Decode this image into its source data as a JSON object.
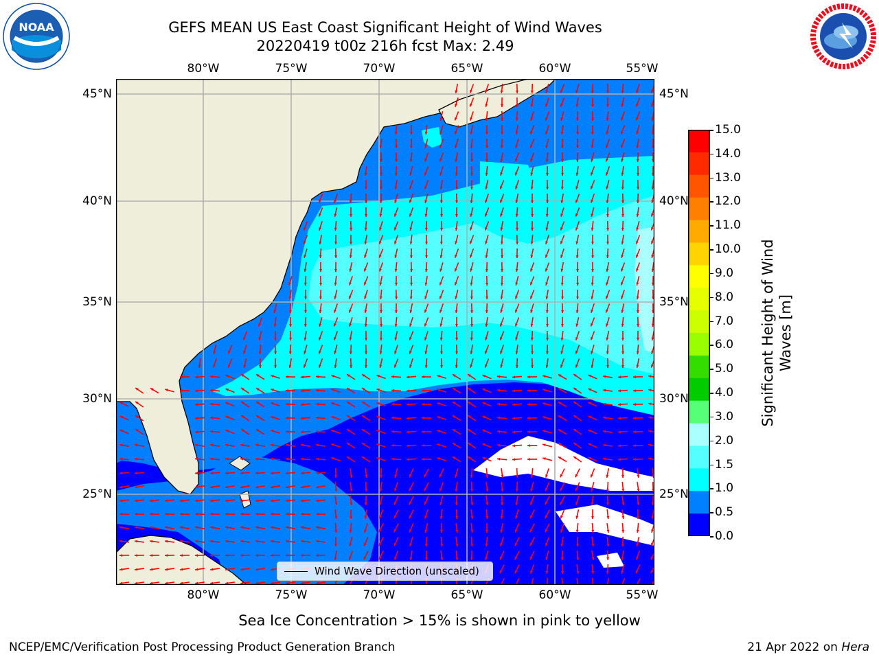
{
  "header": {
    "title_line1": "GEFS MEAN US East Coast Significant Height of Wind Waves",
    "title_line2": "20220419 t00z 216h fcst   Max: 2.49"
  },
  "logos": {
    "left": {
      "text": "NOAA",
      "ring_text": "NATIONAL OCEANIC AND ATMOSPHERIC ADMINISTRATION · U.S. DEPARTMENT OF COMMERCE",
      "color": "#0a4ea2"
    },
    "right": {
      "ring_text": "NATIONAL WEATHER SERVICE",
      "color": "#e8101e"
    }
  },
  "map": {
    "lon_ticks": [
      "80°W",
      "75°W",
      "70°W",
      "65°W",
      "60°W",
      "55°W"
    ],
    "lat_ticks": [
      "45°N",
      "40°N",
      "35°N",
      "30°N",
      "25°N"
    ],
    "legend_label": "Wind Wave Direction (unscaled)",
    "colors": {
      "land": "#efeedb",
      "coast": "#000000",
      "arrow": "#ff0000",
      "grid": "#b0b0b0",
      "no_data": "#ffffff"
    }
  },
  "colorbar": {
    "label_line1": "Significant Height of Wind",
    "label_line2": "Waves [m]",
    "ticks": [
      "15.0",
      "14.0",
      "13.0",
      "12.0",
      "11.0",
      "10.0",
      "9.0",
      "8.0",
      "7.0",
      "6.0",
      "5.0",
      "4.0",
      "3.0",
      "2.0",
      "1.5",
      "1.0",
      "0.5",
      "0.0"
    ],
    "colors": [
      "#ff0000",
      "#ff2a00",
      "#ff5500",
      "#ff8000",
      "#ffaa00",
      "#ffd400",
      "#ffff00",
      "#e6ff00",
      "#ccff00",
      "#99ff00",
      "#33dd00",
      "#00cc00",
      "#55ff77",
      "#aaffff",
      "#55ffff",
      "#00ffff",
      "#0080ff",
      "#0000ff"
    ]
  },
  "footnote": "Sea Ice Concentration > 15% is shown in pink to yellow",
  "footer": {
    "left": "NCEP/EMC/Verification Post Processing Product Generation Branch",
    "right_prefix": "21 Apr 2022 on ",
    "right_host": "Hera"
  }
}
